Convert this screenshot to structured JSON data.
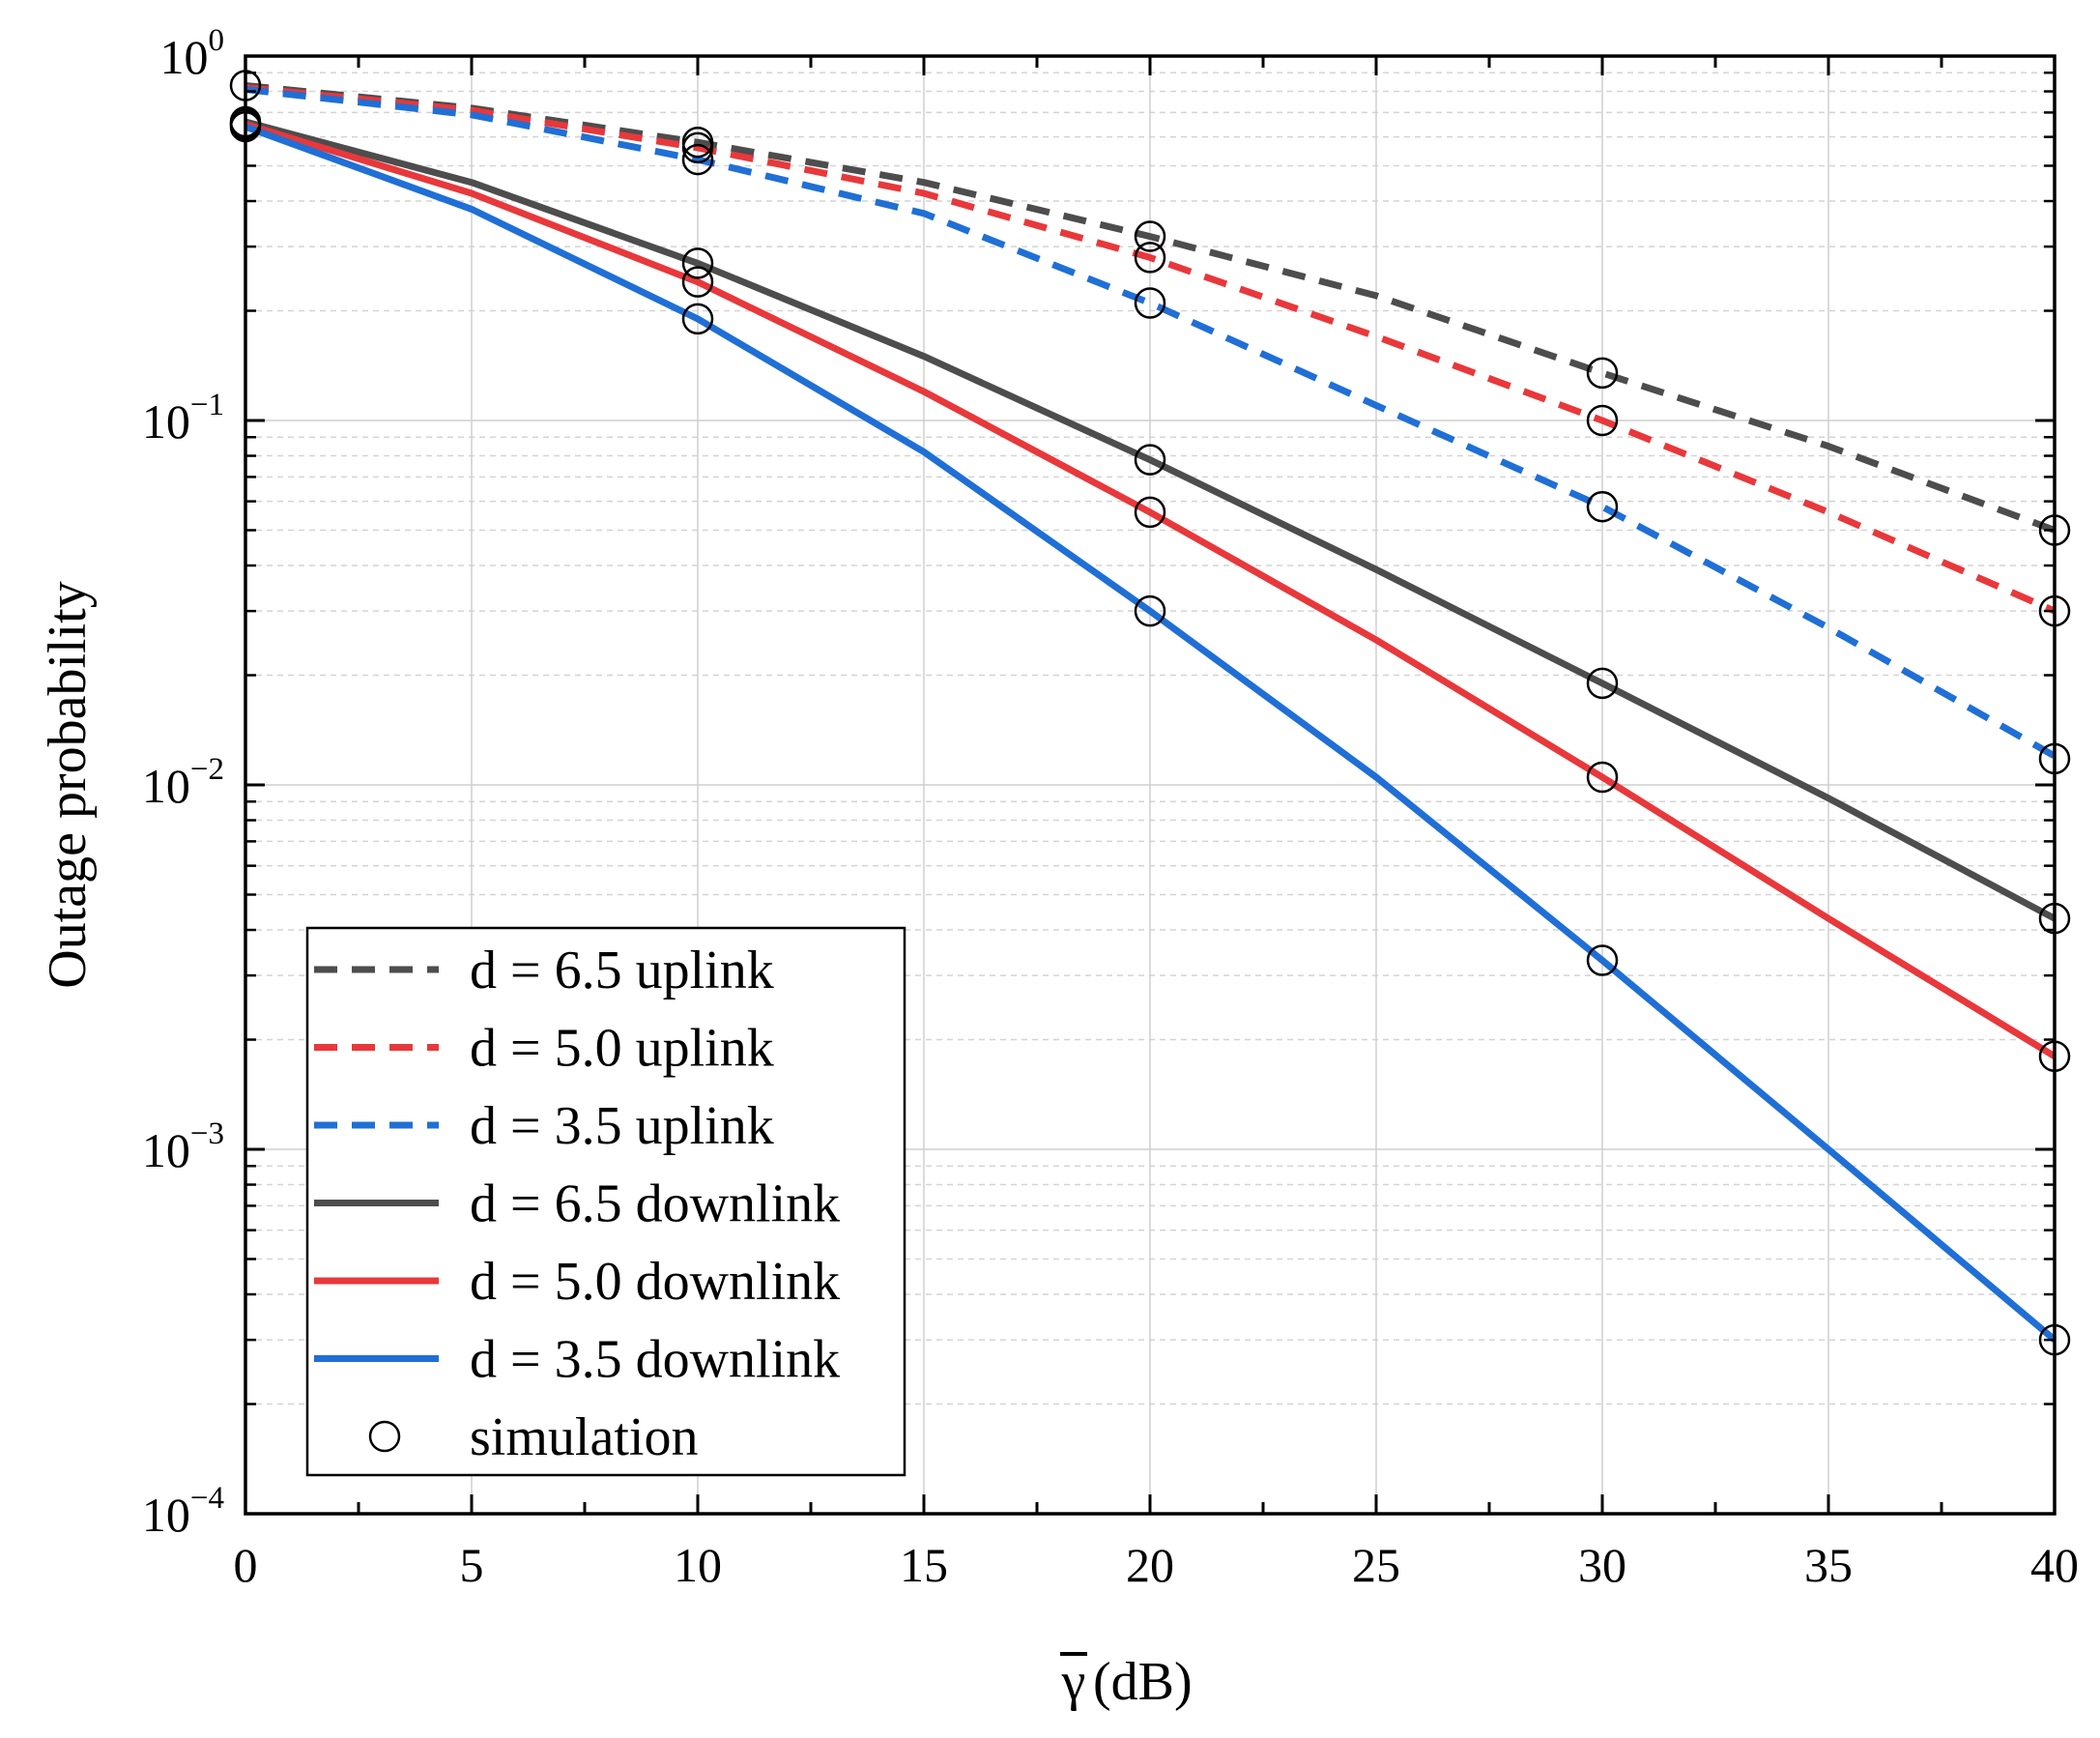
{
  "chart_data": {
    "type": "line",
    "title": "",
    "xlabel": "γ (dB)",
    "xlabel_symbol": "γ",
    "xlabel_unit": "(dB)",
    "ylabel": "Outage probability",
    "xlim": [
      0,
      40
    ],
    "ylim": [
      0.0001,
      1
    ],
    "yscale": "log",
    "grid": true,
    "legend_position": "bottom-left",
    "x_ticks": [
      0,
      5,
      10,
      15,
      20,
      25,
      30,
      35,
      40
    ],
    "x_tick_labels": [
      "0",
      "5",
      "10",
      "15",
      "20",
      "25",
      "30",
      "35",
      "40"
    ],
    "y_ticks": [
      {
        "value": 1,
        "base": "10",
        "exp": "0"
      },
      {
        "value": 0.1,
        "base": "10",
        "exp": "−1"
      },
      {
        "value": 0.01,
        "base": "10",
        "exp": "−2"
      },
      {
        "value": 0.001,
        "base": "10",
        "exp": "−3"
      },
      {
        "value": 0.0001,
        "base": "10",
        "exp": "−4"
      }
    ],
    "x": [
      0,
      5,
      10,
      15,
      20,
      25,
      30,
      35,
      40
    ],
    "series": [
      {
        "name": "d = 6.5 uplink",
        "color": "#4d4d4d",
        "dash": true,
        "values": [
          0.83,
          0.72,
          0.58,
          0.45,
          0.32,
          0.22,
          0.135,
          0.085,
          0.05
        ]
      },
      {
        "name": "d = 5.0 uplink",
        "color": "#e8383b",
        "dash": true,
        "values": [
          0.82,
          0.71,
          0.56,
          0.42,
          0.28,
          0.17,
          0.1,
          0.056,
          0.03
        ]
      },
      {
        "name": "d = 3.5 uplink",
        "color": "#1f6fd6",
        "dash": true,
        "values": [
          0.81,
          0.69,
          0.52,
          0.37,
          0.21,
          0.11,
          0.058,
          0.027,
          0.012
        ]
      },
      {
        "name": "d = 6.5 downlink",
        "color": "#4d4d4d",
        "dash": false,
        "values": [
          0.66,
          0.45,
          0.27,
          0.15,
          0.078,
          0.039,
          0.019,
          0.0092,
          0.0043
        ]
      },
      {
        "name": "d = 5.0 downlink",
        "color": "#e8383b",
        "dash": false,
        "values": [
          0.65,
          0.42,
          0.24,
          0.12,
          0.056,
          0.025,
          0.0105,
          0.0043,
          0.0018
        ]
      },
      {
        "name": "d = 3.5 downlink",
        "color": "#1f6fd6",
        "dash": false,
        "values": [
          0.64,
          0.38,
          0.19,
          0.082,
          0.03,
          0.0105,
          0.0033,
          0.001,
          0.0003
        ]
      }
    ],
    "simulation": {
      "name": "simulation",
      "points": [
        [
          0,
          0.83
        ],
        [
          0,
          0.66
        ],
        [
          0,
          0.65
        ],
        [
          0,
          0.64
        ],
        [
          10,
          0.58
        ],
        [
          10,
          0.56
        ],
        [
          10,
          0.52
        ],
        [
          10,
          0.27
        ],
        [
          10,
          0.24
        ],
        [
          10,
          0.19
        ],
        [
          20,
          0.32
        ],
        [
          20,
          0.28
        ],
        [
          20,
          0.21
        ],
        [
          20,
          0.078
        ],
        [
          20,
          0.056
        ],
        [
          20,
          0.03
        ],
        [
          30,
          0.135
        ],
        [
          30,
          0.1
        ],
        [
          30,
          0.058
        ],
        [
          30,
          0.019
        ],
        [
          30,
          0.0105
        ],
        [
          30,
          0.0033
        ],
        [
          40,
          0.05
        ],
        [
          40,
          0.03
        ],
        [
          40,
          0.0118
        ],
        [
          40,
          0.0043
        ],
        [
          40,
          0.0018
        ],
        [
          40,
          0.0003
        ]
      ]
    }
  }
}
